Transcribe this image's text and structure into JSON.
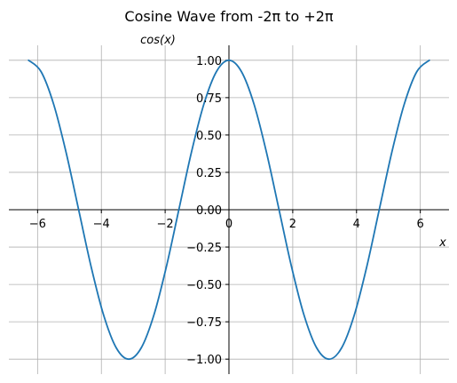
{
  "chart_data": {
    "type": "line",
    "title": "Cosine Wave from -2π to +2π",
    "xlabel": "x",
    "ylabel": "cos(x)",
    "xlim": [
      -6.9,
      6.9
    ],
    "ylim": [
      -1.1,
      1.1
    ],
    "xticks": [
      {
        "value": -6,
        "label": "−6"
      },
      {
        "value": -4,
        "label": "−4"
      },
      {
        "value": -2,
        "label": "−2"
      },
      {
        "value": 0,
        "label": "0"
      },
      {
        "value": 2,
        "label": "2"
      },
      {
        "value": 4,
        "label": "4"
      },
      {
        "value": 6,
        "label": "6"
      }
    ],
    "yticks": [
      {
        "value": 1.0,
        "label": "1.00"
      },
      {
        "value": 0.75,
        "label": "0.75"
      },
      {
        "value": 0.5,
        "label": "0.50"
      },
      {
        "value": 0.25,
        "label": "0.25"
      },
      {
        "value": 0.0,
        "label": "0.00"
      },
      {
        "value": -0.25,
        "label": "−0.25"
      },
      {
        "value": -0.5,
        "label": "−0.50"
      },
      {
        "value": -0.75,
        "label": "−0.75"
      },
      {
        "value": -1.0,
        "label": "−1.00"
      }
    ],
    "grid": true,
    "line_color": "#1f77b4",
    "grid_color": "#b0b0b0",
    "series": [
      {
        "x": [
          -6.2832,
          -5.8905,
          -5.4978,
          -5.1051,
          -4.7124,
          -4.3197,
          -3.927,
          -3.5343,
          -3.1416,
          -2.7489,
          -2.3562,
          -1.9635,
          -1.5708,
          -1.1781,
          -0.7854,
          -0.3927,
          0.0,
          0.3927,
          0.7854,
          1.1781,
          1.5708,
          1.9635,
          2.3562,
          2.7489,
          3.1416,
          3.5343,
          3.927,
          4.3197,
          4.7124,
          5.1051,
          5.4978,
          5.8905,
          6.2832
        ],
        "y": [
          1.0,
          0.9239,
          0.7071,
          0.3827,
          0.0,
          -0.3827,
          -0.7071,
          -0.9239,
          -1.0,
          -0.9239,
          -0.7071,
          -0.3827,
          0.0,
          0.3827,
          0.7071,
          0.9239,
          1.0,
          0.9239,
          0.7071,
          0.3827,
          0.0,
          -0.3827,
          -0.7071,
          -0.9239,
          -1.0,
          -0.9239,
          -0.7071,
          -0.3827,
          0.0,
          0.3827,
          0.7071,
          0.9239,
          1.0
        ]
      }
    ]
  }
}
